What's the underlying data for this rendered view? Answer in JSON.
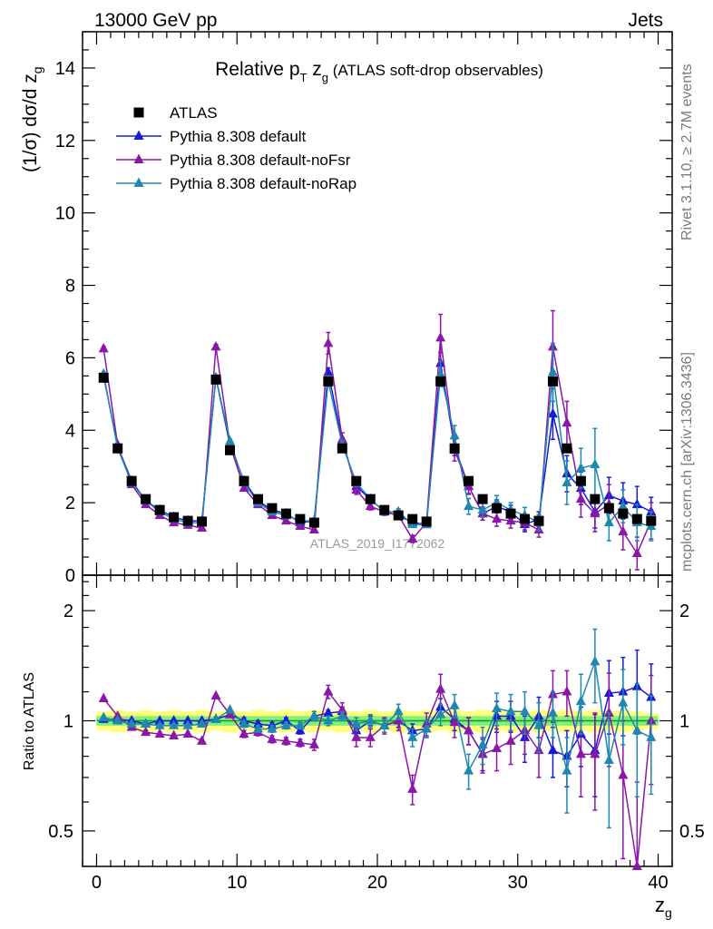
{
  "header": {
    "left": "13000 GeV pp",
    "right": "Jets"
  },
  "side_labels": {
    "rivet": "Rivet 3.1.10, ≥ 2.7M events",
    "mcplots": "mcplots.cern.ch [arXiv:1306.3436]"
  },
  "watermark": "ATLAS_2019_I1772062",
  "colors": {
    "atlas": "#000000",
    "default": "#1a1ad6",
    "noFsr": "#8a17a8",
    "noRap": "#1f88b0",
    "band_inner": "#7df07d",
    "band_outer": "#ffff7a",
    "ratio_line": "#1a9a1a"
  },
  "chart_data": [
    {
      "type": "scatter",
      "title": "Relative p_T z_g (ATLAS soft-drop observables)",
      "title_parts": {
        "pre": "Relative p",
        "sub1": "T",
        "mid": " z",
        "sub2": "g",
        "post": " (ATLAS soft-drop observables)"
      },
      "ylabel": "(1/σ) dσ/d z_g",
      "ylabel_parts": {
        "pre": "(1/σ) dσ/d z",
        "sub": "g"
      },
      "ylim": [
        0,
        15
      ],
      "yticks": [
        "0",
        "2",
        "4",
        "6",
        "8",
        "10",
        "12",
        "14"
      ],
      "yticks_values": [
        0,
        2,
        4,
        6,
        8,
        10,
        12,
        14
      ],
      "xlim": [
        -1,
        41
      ],
      "legend_placement": "top-left",
      "x": [
        0.5,
        1.5,
        2.5,
        3.5,
        4.5,
        5.5,
        6.5,
        7.5,
        8.5,
        9.5,
        10.5,
        11.5,
        12.5,
        13.5,
        14.5,
        15.5,
        16.5,
        17.5,
        18.5,
        19.5,
        20.5,
        21.5,
        22.5,
        23.5,
        24.5,
        25.5,
        26.5,
        27.5,
        28.5,
        29.5,
        30.5,
        31.5,
        32.5,
        33.5,
        34.5,
        35.5,
        36.5,
        37.5,
        38.5,
        39.5
      ],
      "series": [
        {
          "name": "ATLAS",
          "key": "atlas",
          "values": [
            5.45,
            3.5,
            2.6,
            2.1,
            1.8,
            1.6,
            1.5,
            1.48,
            5.4,
            3.45,
            2.6,
            2.1,
            1.85,
            1.7,
            1.55,
            1.45,
            5.35,
            3.5,
            2.6,
            2.1,
            1.8,
            1.65,
            1.55,
            1.48,
            5.35,
            3.5,
            2.6,
            2.1,
            1.85,
            1.7,
            1.55,
            1.5,
            5.35,
            3.5,
            2.6,
            2.1,
            1.85,
            1.7,
            1.55,
            1.5
          ]
        },
        {
          "name": "Pythia 8.308 default",
          "key": "default",
          "values": [
            5.5,
            3.55,
            2.6,
            2.05,
            1.8,
            1.6,
            1.5,
            1.5,
            5.45,
            3.6,
            2.6,
            2.05,
            1.8,
            1.7,
            1.45,
            1.5,
            5.6,
            3.7,
            2.45,
            2.1,
            1.75,
            1.65,
            1.45,
            1.4,
            5.85,
            3.55,
            2.45,
            1.7,
            1.9,
            1.75,
            1.4,
            1.55,
            4.45,
            2.8,
            2.4,
            1.75,
            2.2,
            2.05,
            1.95,
            1.75
          ],
          "errors": [
            0.05,
            0.04,
            0.04,
            0.03,
            0.03,
            0.03,
            0.03,
            0.03,
            0.06,
            0.05,
            0.05,
            0.04,
            0.04,
            0.04,
            0.04,
            0.04,
            0.12,
            0.1,
            0.08,
            0.07,
            0.07,
            0.07,
            0.07,
            0.07,
            0.3,
            0.25,
            0.2,
            0.18,
            0.18,
            0.18,
            0.2,
            0.2,
            0.7,
            0.5,
            0.45,
            0.45,
            0.5,
            0.5,
            0.5,
            0.4
          ]
        },
        {
          "name": "Pythia 8.308 default-noFsr",
          "key": "noFsr",
          "values": [
            6.25,
            3.6,
            2.5,
            1.95,
            1.65,
            1.45,
            1.38,
            1.3,
            6.3,
            3.6,
            2.4,
            1.95,
            1.65,
            1.5,
            1.35,
            1.25,
            6.4,
            3.75,
            2.35,
            1.9,
            1.75,
            1.65,
            1.0,
            1.45,
            6.55,
            3.45,
            2.45,
            1.7,
            1.55,
            1.5,
            1.45,
            1.25,
            6.3,
            4.2,
            2.1,
            1.7,
            1.95,
            1.2,
            0.6,
            1.5
          ],
          "errors": [
            0.06,
            0.04,
            0.04,
            0.03,
            0.03,
            0.03,
            0.03,
            0.03,
            0.07,
            0.05,
            0.05,
            0.04,
            0.04,
            0.04,
            0.04,
            0.04,
            0.3,
            0.18,
            0.12,
            0.1,
            0.1,
            0.1,
            0.1,
            0.1,
            0.65,
            0.3,
            0.22,
            0.18,
            0.2,
            0.2,
            0.2,
            0.2,
            1.0,
            0.6,
            0.5,
            0.5,
            0.55,
            0.5,
            0.45,
            0.5
          ]
        },
        {
          "name": "Pythia 8.308 default-noRap",
          "key": "noRap",
          "values": [
            5.55,
            3.5,
            2.55,
            2.05,
            1.75,
            1.55,
            1.45,
            1.45,
            5.45,
            3.7,
            2.55,
            2.0,
            1.75,
            1.65,
            1.5,
            1.5,
            5.35,
            3.6,
            2.55,
            2.1,
            1.75,
            1.75,
            1.4,
            1.4,
            5.55,
            3.85,
            1.9,
            1.8,
            2.0,
            1.8,
            1.65,
            1.45,
            5.6,
            2.55,
            2.95,
            3.05,
            1.45,
            1.9,
            1.45,
            1.35
          ],
          "errors": [
            0.05,
            0.04,
            0.04,
            0.03,
            0.03,
            0.03,
            0.03,
            0.03,
            0.06,
            0.05,
            0.05,
            0.04,
            0.04,
            0.04,
            0.04,
            0.04,
            0.15,
            0.12,
            0.1,
            0.08,
            0.08,
            0.08,
            0.08,
            0.08,
            0.35,
            0.28,
            0.22,
            0.2,
            0.2,
            0.2,
            0.22,
            0.22,
            0.8,
            0.6,
            0.55,
            1.0,
            0.5,
            0.45,
            0.5,
            0.4
          ]
        }
      ]
    },
    {
      "type": "scatter",
      "title": "",
      "ylabel": "Ratio to ATLAS",
      "xlabel": "z_g",
      "xlabel_parts": {
        "pre": "z",
        "sub": "g"
      },
      "ylim": [
        0.4,
        2.5
      ],
      "yscale": "log",
      "yticks": [
        "0.5",
        "1",
        "2"
      ],
      "yticks_values": [
        0.5,
        1,
        2
      ],
      "xlim": [
        -1,
        41
      ],
      "xticks": [
        "0",
        "10",
        "20",
        "30",
        "40"
      ],
      "xticks_values": [
        0,
        10,
        20,
        30,
        40
      ],
      "reference_value": 1,
      "x": [
        0.5,
        1.5,
        2.5,
        3.5,
        4.5,
        5.5,
        6.5,
        7.5,
        8.5,
        9.5,
        10.5,
        11.5,
        12.5,
        13.5,
        14.5,
        15.5,
        16.5,
        17.5,
        18.5,
        19.5,
        20.5,
        21.5,
        22.5,
        23.5,
        24.5,
        25.5,
        26.5,
        27.5,
        28.5,
        29.5,
        30.5,
        31.5,
        32.5,
        33.5,
        34.5,
        35.5,
        36.5,
        37.5,
        38.5,
        39.5
      ],
      "band_inner": [
        0.03,
        0.03,
        0.03,
        0.03,
        0.03,
        0.03,
        0.03,
        0.03,
        0.03,
        0.03,
        0.03,
        0.03,
        0.03,
        0.03,
        0.03,
        0.03,
        0.03,
        0.03,
        0.03,
        0.03,
        0.03,
        0.03,
        0.03,
        0.03,
        0.03,
        0.03,
        0.03,
        0.03,
        0.03,
        0.03,
        0.03,
        0.03,
        0.03,
        0.03,
        0.03,
        0.03,
        0.03,
        0.03,
        0.03,
        0.03
      ],
      "band_outer": [
        0.06,
        0.07,
        0.06,
        0.07,
        0.06,
        0.07,
        0.06,
        0.07,
        0.06,
        0.07,
        0.06,
        0.07,
        0.06,
        0.07,
        0.06,
        0.07,
        0.06,
        0.07,
        0.06,
        0.07,
        0.06,
        0.07,
        0.06,
        0.07,
        0.06,
        0.07,
        0.06,
        0.07,
        0.06,
        0.07,
        0.06,
        0.07,
        0.06,
        0.07,
        0.06,
        0.07,
        0.06,
        0.07,
        0.06,
        0.05
      ],
      "series": [
        {
          "name": "Pythia 8.308 default",
          "key": "default",
          "values": [
            1.01,
            1.01,
            1.0,
            0.98,
            1.0,
            1.0,
            1.0,
            1.0,
            1.01,
            1.04,
            1.0,
            0.98,
            0.97,
            1.0,
            0.94,
            1.03,
            1.05,
            1.06,
            0.94,
            1.0,
            0.97,
            1.0,
            0.94,
            0.95,
            1.09,
            1.01,
            0.94,
            0.81,
            1.03,
            1.03,
            0.9,
            1.03,
            0.83,
            0.8,
            0.92,
            0.83,
            1.19,
            1.2,
            1.24,
            1.16
          ],
          "errors": [
            0.01,
            0.01,
            0.01,
            0.01,
            0.01,
            0.01,
            0.01,
            0.01,
            0.01,
            0.01,
            0.02,
            0.02,
            0.02,
            0.02,
            0.02,
            0.03,
            0.02,
            0.03,
            0.03,
            0.03,
            0.04,
            0.04,
            0.04,
            0.05,
            0.06,
            0.07,
            0.08,
            0.08,
            0.1,
            0.1,
            0.13,
            0.13,
            0.13,
            0.14,
            0.17,
            0.21,
            0.27,
            0.29,
            0.32,
            0.27
          ]
        },
        {
          "name": "Pythia 8.308 default-noFsr",
          "key": "noFsr",
          "values": [
            1.15,
            1.03,
            0.96,
            0.93,
            0.92,
            0.91,
            0.92,
            0.88,
            1.17,
            1.04,
            0.92,
            0.93,
            0.89,
            0.88,
            0.87,
            0.86,
            1.2,
            1.07,
            0.9,
            0.9,
            0.97,
            1.0,
            0.65,
            0.98,
            1.22,
            0.99,
            0.94,
            0.81,
            0.84,
            0.88,
            0.94,
            0.83,
            1.18,
            1.2,
            0.81,
            0.81,
            1.05,
            0.71,
            0.39,
            1.0
          ],
          "errors": [
            0.01,
            0.01,
            0.01,
            0.01,
            0.01,
            0.01,
            0.01,
            0.01,
            0.01,
            0.01,
            0.02,
            0.02,
            0.02,
            0.02,
            0.02,
            0.03,
            0.05,
            0.05,
            0.05,
            0.05,
            0.05,
            0.06,
            0.06,
            0.07,
            0.12,
            0.09,
            0.08,
            0.09,
            0.11,
            0.12,
            0.13,
            0.13,
            0.19,
            0.17,
            0.19,
            0.24,
            0.3,
            0.29,
            0.29,
            0.33
          ]
        },
        {
          "name": "Pythia 8.308 default-noRap",
          "key": "noRap",
          "values": [
            1.02,
            1.0,
            0.98,
            0.98,
            0.97,
            0.97,
            0.97,
            0.98,
            1.01,
            1.07,
            0.98,
            0.95,
            0.95,
            0.97,
            0.97,
            1.03,
            1.0,
            1.03,
            0.98,
            1.0,
            0.97,
            1.06,
            0.9,
            0.95,
            1.04,
            1.1,
            0.73,
            0.86,
            1.08,
            1.06,
            1.06,
            0.97,
            1.05,
            0.73,
            1.13,
            1.45,
            0.78,
            1.12,
            0.94,
            0.9
          ],
          "errors": [
            0.01,
            0.01,
            0.01,
            0.01,
            0.01,
            0.01,
            0.01,
            0.01,
            0.01,
            0.01,
            0.02,
            0.02,
            0.02,
            0.02,
            0.02,
            0.03,
            0.03,
            0.03,
            0.04,
            0.04,
            0.04,
            0.05,
            0.05,
            0.05,
            0.07,
            0.08,
            0.08,
            0.1,
            0.11,
            0.12,
            0.14,
            0.15,
            0.15,
            0.17,
            0.21,
            0.33,
            0.27,
            0.26,
            0.32,
            0.27
          ]
        }
      ]
    }
  ]
}
